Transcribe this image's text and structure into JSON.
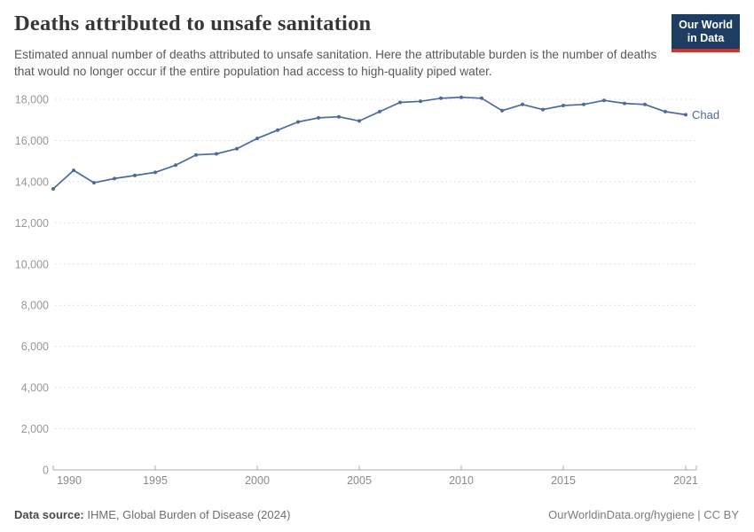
{
  "header": {
    "title": "Deaths attributed to unsafe sanitation",
    "subtitle": "Estimated annual number of deaths attributed to unsafe sanitation. Here the attributable burden is the number of deaths that would no longer occur if the entire population had access to high-quality piped water.",
    "logo": {
      "line1": "Our World",
      "line2": "in Data"
    }
  },
  "footer": {
    "source_label": "Data source:",
    "source_text": " IHME, Global Burden of Disease (2024)",
    "link_text": "OurWorldinData.org/hygiene | CC BY"
  },
  "chart_data": {
    "type": "line",
    "title": "Deaths attributed to unsafe sanitation",
    "x": [
      1990,
      1991,
      1992,
      1993,
      1994,
      1995,
      1996,
      1997,
      1998,
      1999,
      2000,
      2001,
      2002,
      2003,
      2004,
      2005,
      2006,
      2007,
      2008,
      2009,
      2010,
      2011,
      2012,
      2013,
      2014,
      2015,
      2016,
      2017,
      2018,
      2019,
      2020,
      2021
    ],
    "series": [
      {
        "name": "Chad",
        "color": "#4C6A9C",
        "values": [
          13650,
          14550,
          13950,
          14150,
          14300,
          14450,
          14800,
          15300,
          15350,
          15600,
          16100,
          16500,
          16900,
          17100,
          17150,
          16950,
          17400,
          17850,
          17900,
          18050,
          18100,
          18050,
          17450,
          17750,
          17500,
          17700,
          17750,
          17950,
          17800,
          17750,
          17400,
          17250
        ]
      }
    ],
    "end_label": "Chad",
    "xticks": [
      1990,
      1995,
      2000,
      2005,
      2010,
      2015,
      2021
    ],
    "yticks": [
      0,
      2000,
      4000,
      6000,
      8000,
      10000,
      12000,
      14000,
      16000,
      18000
    ],
    "xlim": [
      1990,
      2021
    ],
    "ylim": [
      0,
      18000
    ],
    "grid": "horizontal-dashed",
    "legend_position": "end-of-line"
  },
  "colors": {
    "line": "#4C6A9C",
    "end_label": "#4C6A9C",
    "grid": "#e0e0e0",
    "axis": "#ababab",
    "y_tick_text": "#979797",
    "x_tick_text": "#8a8a8a",
    "logo_bg": "#1d3d63",
    "logo_red": "#d0342c"
  }
}
